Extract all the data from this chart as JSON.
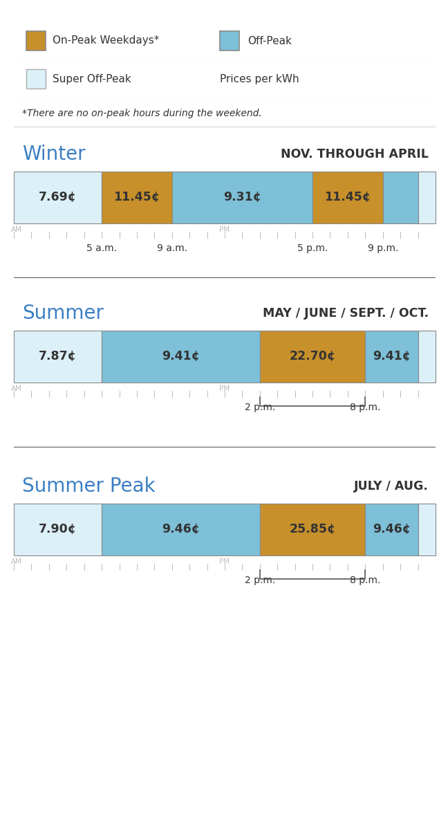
{
  "colors": {
    "on_peak": "#C8902A",
    "off_peak": "#7DC0D8",
    "super_off_peak": "#DCF0F8",
    "border_dark": "#888888",
    "border_light": "#AAAAAA",
    "blue_title": "#3B7FC4",
    "dark_text": "#333333",
    "gray_text": "#BBBBBB",
    "separator_light": "#CCCCCC",
    "separator_dark": "#666666",
    "bg": "#FFFFFF"
  },
  "legend": {
    "on_peak_label": "On-Peak Weekdays*",
    "off_peak_label": "Off-Peak",
    "super_off_peak_label": "Super Off-Peak",
    "prices_label": "Prices per kWh",
    "footnote": "*There are no on-peak hours during the weekend."
  },
  "winter": {
    "title": "Winter",
    "subtitle": "NOV. THROUGH APRIL",
    "segments": [
      {
        "label": "7.69¢",
        "start": 0,
        "end": 5,
        "type": "super_off_peak"
      },
      {
        "label": "11.45¢",
        "start": 5,
        "end": 9,
        "type": "on_peak"
      },
      {
        "label": "9.31¢",
        "start": 9,
        "end": 17,
        "type": "off_peak"
      },
      {
        "label": "11.45¢",
        "start": 17,
        "end": 21,
        "type": "on_peak"
      },
      {
        "label": "",
        "start": 21,
        "end": 23,
        "type": "off_peak"
      },
      {
        "label": "",
        "start": 23,
        "end": 24,
        "type": "super_off_peak"
      }
    ],
    "tick_labels": [
      {
        "hour": 5,
        "label": "5 a.m."
      },
      {
        "hour": 9,
        "label": "9 a.m."
      },
      {
        "hour": 17,
        "label": "5 p.m."
      },
      {
        "hour": 21,
        "label": "9 p.m."
      }
    ],
    "bracket": null
  },
  "summer": {
    "title": "Summer",
    "subtitle": "MAY / JUNE / SEPT. / OCT.",
    "segments": [
      {
        "label": "7.87¢",
        "start": 0,
        "end": 5,
        "type": "super_off_peak"
      },
      {
        "label": "9.41¢",
        "start": 5,
        "end": 14,
        "type": "off_peak"
      },
      {
        "label": "22.70¢",
        "start": 14,
        "end": 20,
        "type": "on_peak"
      },
      {
        "label": "9.41¢",
        "start": 20,
        "end": 23,
        "type": "off_peak"
      },
      {
        "label": "",
        "start": 23,
        "end": 24,
        "type": "super_off_peak"
      }
    ],
    "tick_labels": [
      {
        "hour": 14,
        "label": "2 p.m."
      },
      {
        "hour": 20,
        "label": "8 p.m."
      }
    ],
    "bracket": [
      14,
      20
    ]
  },
  "summer_peak": {
    "title": "Summer Peak",
    "subtitle": "JULY / AUG.",
    "segments": [
      {
        "label": "7.90¢",
        "start": 0,
        "end": 5,
        "type": "super_off_peak"
      },
      {
        "label": "9.46¢",
        "start": 5,
        "end": 14,
        "type": "off_peak"
      },
      {
        "label": "25.85¢",
        "start": 14,
        "end": 20,
        "type": "on_peak"
      },
      {
        "label": "9.46¢",
        "start": 20,
        "end": 23,
        "type": "off_peak"
      },
      {
        "label": "",
        "start": 23,
        "end": 24,
        "type": "super_off_peak"
      }
    ],
    "tick_labels": [
      {
        "hour": 14,
        "label": "2 p.m."
      },
      {
        "hour": 20,
        "label": "8 p.m."
      }
    ],
    "bracket": [
      14,
      20
    ]
  }
}
